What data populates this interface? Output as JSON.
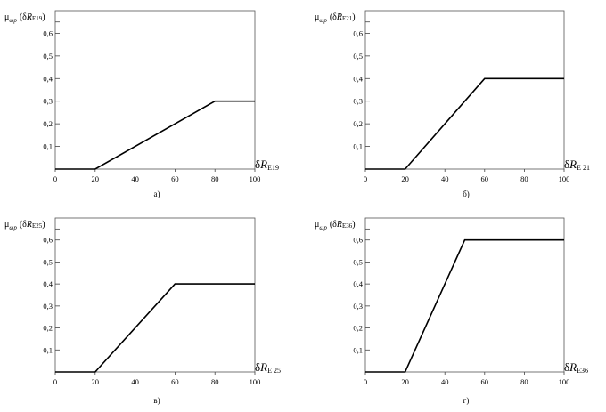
{
  "chart_data": [
    {
      "type": "line",
      "panel_label": "а)",
      "ylabel": {
        "mu": "μ",
        "sub": "ωp",
        "open": "(δ",
        "var": "R",
        "idx": "E19",
        "close": ")"
      },
      "xlabel": {
        "delta": "δ",
        "var": "R",
        "sub": "E19"
      },
      "xlim": [
        0,
        100
      ],
      "ylim": [
        0,
        0.7
      ],
      "x_ticks": [
        "0",
        "20",
        "40",
        "60",
        "80",
        "100"
      ],
      "x_tick_values": [
        0,
        20,
        40,
        60,
        80,
        100
      ],
      "y_ticks": [
        "0,1",
        "0,2",
        "0,3",
        "0,4",
        "0,5",
        "0,6"
      ],
      "y_tick_values": [
        0.1,
        0.2,
        0.3,
        0.4,
        0.5,
        0.6
      ],
      "x": [
        0,
        20,
        80,
        100
      ],
      "y": [
        0,
        0,
        0.3,
        0.3
      ]
    },
    {
      "type": "line",
      "panel_label": "б)",
      "ylabel": {
        "mu": "μ",
        "sub": "ωp",
        "open": "(δ",
        "var": "R",
        "idx": "E21",
        "close": ")"
      },
      "xlabel": {
        "delta": "δ",
        "var": "R",
        "sub": "E 21"
      },
      "xlim": [
        0,
        100
      ],
      "ylim": [
        0,
        0.7
      ],
      "x_ticks": [
        "0",
        "20",
        "40",
        "60",
        "80",
        "100"
      ],
      "x_tick_values": [
        0,
        20,
        40,
        60,
        80,
        100
      ],
      "y_ticks": [
        "0,1",
        "0,2",
        "0,3",
        "0,4",
        "0,5",
        "0,6"
      ],
      "y_tick_values": [
        0.1,
        0.2,
        0.3,
        0.4,
        0.5,
        0.6
      ],
      "x": [
        0,
        20,
        60,
        100
      ],
      "y": [
        0,
        0,
        0.4,
        0.4
      ]
    },
    {
      "type": "line",
      "panel_label": "в)",
      "ylabel": {
        "mu": "μ",
        "sub": "ωp",
        "open": "(δ",
        "var": "R",
        "idx": "E25",
        "close": ")"
      },
      "xlabel": {
        "delta": "δ",
        "var": "R",
        "sub": "E 25"
      },
      "xlim": [
        0,
        100
      ],
      "ylim": [
        0,
        0.7
      ],
      "x_ticks": [
        "0",
        "20",
        "40",
        "60",
        "80",
        "100"
      ],
      "x_tick_values": [
        0,
        20,
        40,
        60,
        80,
        100
      ],
      "y_ticks": [
        "0,1",
        "0,2",
        "0,3",
        "0,4",
        "0,5",
        "0,6"
      ],
      "y_tick_values": [
        0.1,
        0.2,
        0.3,
        0.4,
        0.5,
        0.6
      ],
      "x": [
        0,
        20,
        60,
        100
      ],
      "y": [
        0,
        0,
        0.4,
        0.4
      ]
    },
    {
      "type": "line",
      "panel_label": "г)",
      "ylabel": {
        "mu": "μ",
        "sub": "ωp",
        "open": "(δ",
        "var": "R",
        "idx": "E36",
        "close": ")"
      },
      "xlabel": {
        "delta": "δ",
        "var": "R",
        "sub": "E36"
      },
      "xlim": [
        0,
        100
      ],
      "ylim": [
        0,
        0.7
      ],
      "x_ticks": [
        "0",
        "20",
        "40",
        "60",
        "80",
        "100"
      ],
      "x_tick_values": [
        0,
        20,
        40,
        60,
        80,
        100
      ],
      "y_ticks": [
        "0,1",
        "0,2",
        "0,3",
        "0,4",
        "0,5",
        "0,6"
      ],
      "y_tick_values": [
        0.1,
        0.2,
        0.3,
        0.4,
        0.5,
        0.6
      ],
      "x": [
        0,
        20,
        50,
        100
      ],
      "y": [
        0,
        0,
        0.6,
        0.6
      ]
    }
  ]
}
